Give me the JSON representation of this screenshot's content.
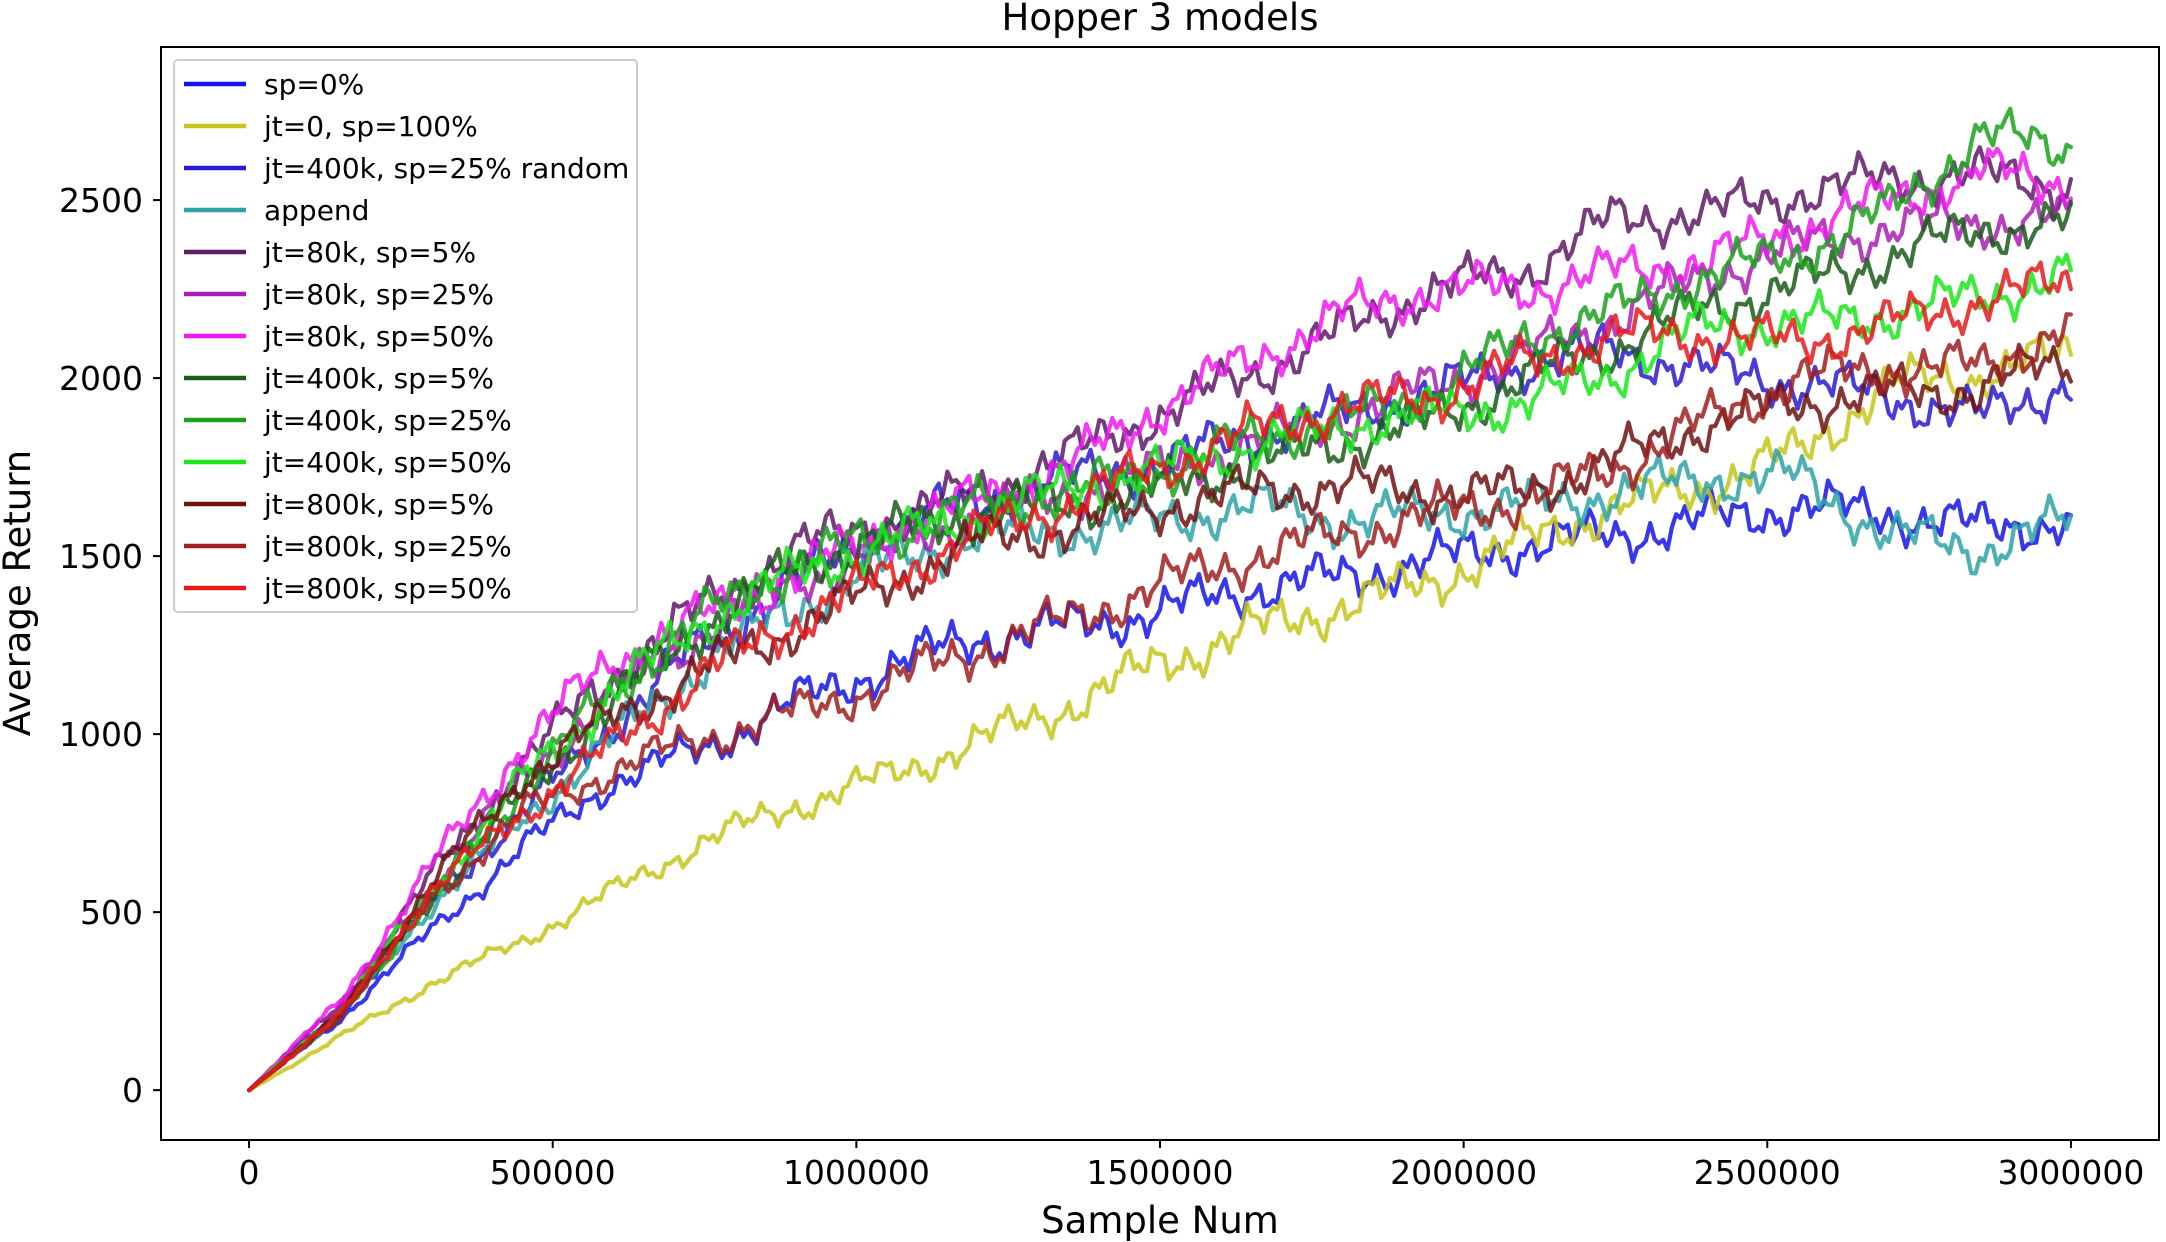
{
  "chart_data": {
    "type": "line",
    "title": "Hopper 3 models",
    "xlabel": "Sample Num",
    "ylabel": "Average Return",
    "xlim": [
      -145000,
      3145000
    ],
    "ylim": [
      -140,
      2930
    ],
    "xticks": [
      0,
      500000,
      1000000,
      1500000,
      2000000,
      2500000,
      3000000
    ],
    "xtick_labels": [
      "0",
      "500000",
      "1000000",
      "1500000",
      "2000000",
      "2500000",
      "3000000"
    ],
    "yticks": [
      0,
      500,
      1000,
      1500,
      2000,
      2500
    ],
    "ytick_labels": [
      "0",
      "500",
      "1000",
      "1500",
      "2000",
      "2500"
    ],
    "grid": false,
    "legend_position": "top-left",
    "x": [
      0,
      150000,
      300000,
      450000,
      600000,
      750000,
      900000,
      1050000,
      1200000,
      1350000,
      1500000,
      1650000,
      1800000,
      1950000,
      2100000,
      2250000,
      2400000,
      2550000,
      2700000,
      2850000,
      3000000
    ],
    "series": [
      {
        "name": "sp=0%",
        "color": "#1515e6",
        "values": [
          0,
          200,
          450,
          680,
          870,
          960,
          1090,
          1190,
          1270,
          1300,
          1345,
          1410,
          1440,
          1490,
          1530,
          1560,
          1600,
          1640,
          1620,
          1580,
          1600
        ]
      },
      {
        "name": "jt=0, sp=100%",
        "color": "#c6c61a",
        "values": [
          0,
          150,
          300,
          420,
          560,
          700,
          800,
          880,
          980,
          1080,
          1200,
          1290,
          1360,
          1430,
          1540,
          1640,
          1700,
          1790,
          1980,
          2010,
          2070
        ]
      },
      {
        "name": "jt=400k, sp=25% random",
        "color": "#2a1ad0",
        "values": [
          0,
          220,
          530,
          780,
          1030,
          1260,
          1430,
          1570,
          1660,
          1720,
          1760,
          1840,
          1900,
          1960,
          2040,
          2080,
          2020,
          1990,
          1950,
          1890,
          1990
        ]
      },
      {
        "name": "append",
        "color": "#2ea3a6",
        "values": [
          0,
          210,
          520,
          760,
          990,
          1200,
          1360,
          1480,
          1560,
          1570,
          1600,
          1640,
          1600,
          1620,
          1640,
          1680,
          1720,
          1720,
          1560,
          1520,
          1600
        ]
      },
      {
        "name": "jt=80k, sp=5%",
        "color": "#5f1a67",
        "values": [
          0,
          240,
          600,
          920,
          1170,
          1360,
          1520,
          1600,
          1680,
          1780,
          1900,
          2010,
          2130,
          2250,
          2300,
          2450,
          2460,
          2520,
          2560,
          2570,
          2540
        ]
      },
      {
        "name": "jt=80k, sp=25%",
        "color": "#aa1fb3",
        "values": [
          0,
          230,
          570,
          880,
          1110,
          1290,
          1430,
          1530,
          1610,
          1680,
          1740,
          1820,
          1890,
          1980,
          2060,
          2170,
          2290,
          2370,
          2420,
          2440,
          2440
        ]
      },
      {
        "name": "jt=80k, sp=50%",
        "color": "#f019f0",
        "values": [
          0,
          250,
          630,
          970,
          1210,
          1330,
          1450,
          1570,
          1660,
          1750,
          1920,
          2050,
          2180,
          2250,
          2250,
          2300,
          2330,
          2420,
          2500,
          2580,
          2550
        ]
      },
      {
        "name": "jt=400k, sp=5%",
        "color": "#1a5c1a",
        "values": [
          0,
          210,
          540,
          830,
          1090,
          1310,
          1470,
          1560,
          1620,
          1650,
          1690,
          1760,
          1820,
          1880,
          2000,
          2090,
          2200,
          2260,
          2340,
          2420,
          2430
        ]
      },
      {
        "name": "jt=400k, sp=25%",
        "color": "#1aa21a",
        "values": [
          0,
          210,
          540,
          850,
          1130,
          1330,
          1480,
          1560,
          1640,
          1680,
          1740,
          1830,
          1880,
          1960,
          2110,
          2190,
          2290,
          2350,
          2470,
          2680,
          2650
        ]
      },
      {
        "name": "jt=400k, sp=50%",
        "color": "#1ae61a",
        "values": [
          0,
          220,
          560,
          870,
          1120,
          1320,
          1450,
          1540,
          1620,
          1690,
          1740,
          1810,
          1870,
          1900,
          1930,
          2020,
          2150,
          2150,
          2180,
          2230,
          2290
        ]
      },
      {
        "name": "jt=800k, sp=5%",
        "color": "#6e1212",
        "values": [
          0,
          210,
          580,
          880,
          1050,
          1180,
          1300,
          1420,
          1540,
          1580,
          1640,
          1680,
          1700,
          1680,
          1680,
          1770,
          1870,
          1930,
          1960,
          1970,
          2060
        ]
      },
      {
        "name": "jt=800k, sp=25%",
        "color": "#a01e1e",
        "values": [
          0,
          210,
          540,
          780,
          900,
          990,
          1060,
          1140,
          1240,
          1320,
          1420,
          1500,
          1560,
          1620,
          1660,
          1750,
          1880,
          2000,
          2030,
          2030,
          2150
        ]
      },
      {
        "name": "jt=800k, sp=50%",
        "color": "#e61a1a",
        "values": [
          0,
          210,
          560,
          780,
          970,
          1170,
          1320,
          1440,
          1560,
          1650,
          1750,
          1850,
          1920,
          1950,
          2040,
          2120,
          2120,
          2100,
          2150,
          2220,
          2270
        ]
      }
    ]
  }
}
